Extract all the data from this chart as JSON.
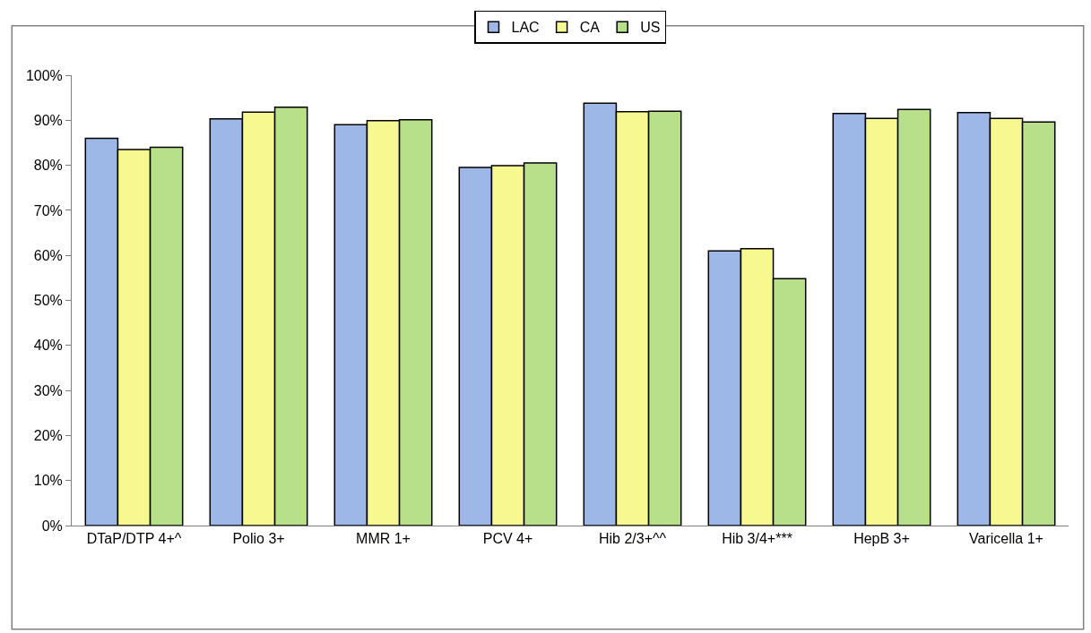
{
  "chart_data": {
    "type": "bar",
    "categories": [
      "DTaP/DTP 4+^",
      "Polio 3+",
      "MMR 1+",
      "PCV 4+",
      "Hib 2/3+^^",
      "Hib 3/4+***",
      "HepB 3+",
      "Varicella 1+"
    ],
    "series": [
      {
        "name": "LAC",
        "color": "#9db7e6",
        "values": [
          86.0,
          90.3,
          89.0,
          79.5,
          93.8,
          61.0,
          91.5,
          91.7
        ]
      },
      {
        "name": "CA",
        "color": "#f8f890",
        "values": [
          83.5,
          91.8,
          89.9,
          79.9,
          91.9,
          61.5,
          90.4,
          90.4
        ]
      },
      {
        "name": "US",
        "color": "#b8e08a",
        "values": [
          84.0,
          92.9,
          90.1,
          80.5,
          92.0,
          54.8,
          92.4,
          89.6
        ]
      }
    ],
    "ylim": [
      0,
      100
    ],
    "yticks": [
      {
        "value": 0,
        "label": "0%"
      },
      {
        "value": 10,
        "label": "10%"
      },
      {
        "value": 20,
        "label": "20%"
      },
      {
        "value": 30,
        "label": "30%"
      },
      {
        "value": 40,
        "label": "40%"
      },
      {
        "value": 50,
        "label": "50%"
      },
      {
        "value": 60,
        "label": "60%"
      },
      {
        "value": 70,
        "label": "70%"
      },
      {
        "value": 80,
        "label": "80%"
      },
      {
        "value": 90,
        "label": "90%"
      },
      {
        "value": 100,
        "label": "100%"
      }
    ],
    "grid": false,
    "legend": "top"
  }
}
